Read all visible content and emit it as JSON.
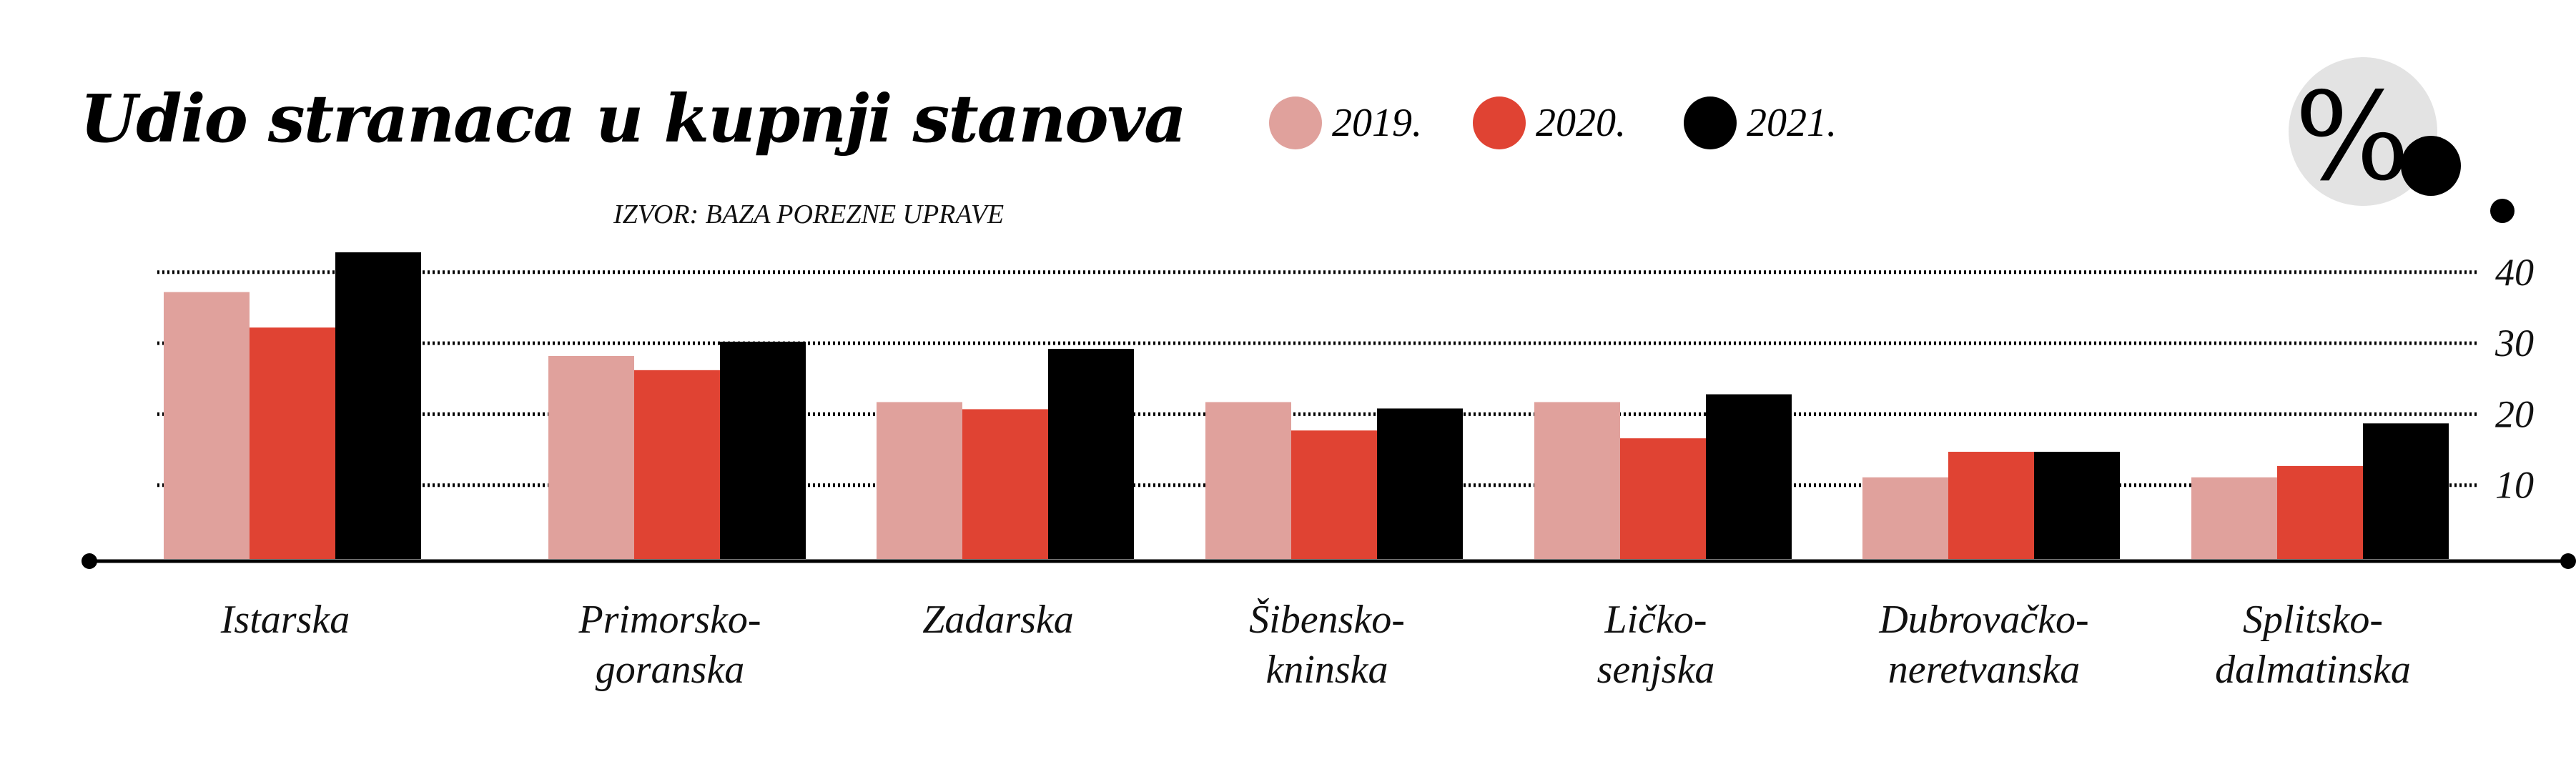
{
  "chart_data": {
    "type": "bar",
    "title": "Udio stranaca u kupnji stanova",
    "source": "IZVOR: BAZA POREZNE UPRAVE",
    "unit_icon": "%",
    "categories": [
      [
        "Istarska"
      ],
      [
        "Primorsko-",
        "goranska"
      ],
      [
        "Zadarska"
      ],
      [
        "Šibensko-",
        "kninska"
      ],
      [
        "Ličko-",
        "senjska"
      ],
      [
        "Dubrovačko-",
        "neretvanska"
      ],
      [
        "Splitsko-",
        "dalmatinska"
      ]
    ],
    "series": [
      {
        "name": "2019.",
        "color": "#e0a19c",
        "values": [
          37.2,
          28.2,
          21.7,
          21.7,
          21.7,
          11.1,
          11.1
        ]
      },
      {
        "name": "2020.",
        "color": "#e04333",
        "values": [
          32.2,
          26.2,
          20.7,
          17.7,
          16.6,
          14.7,
          12.7
        ]
      },
      {
        "name": "2021.",
        "color": "#000000",
        "values": [
          42.8,
          30.2,
          29.2,
          20.8,
          22.8,
          14.7,
          18.7
        ]
      }
    ],
    "yticks": [
      "10",
      "20",
      "30",
      "40"
    ],
    "ylim": [
      0,
      45
    ],
    "grid": true,
    "y_axis_side": "right",
    "legend_position": "top"
  }
}
